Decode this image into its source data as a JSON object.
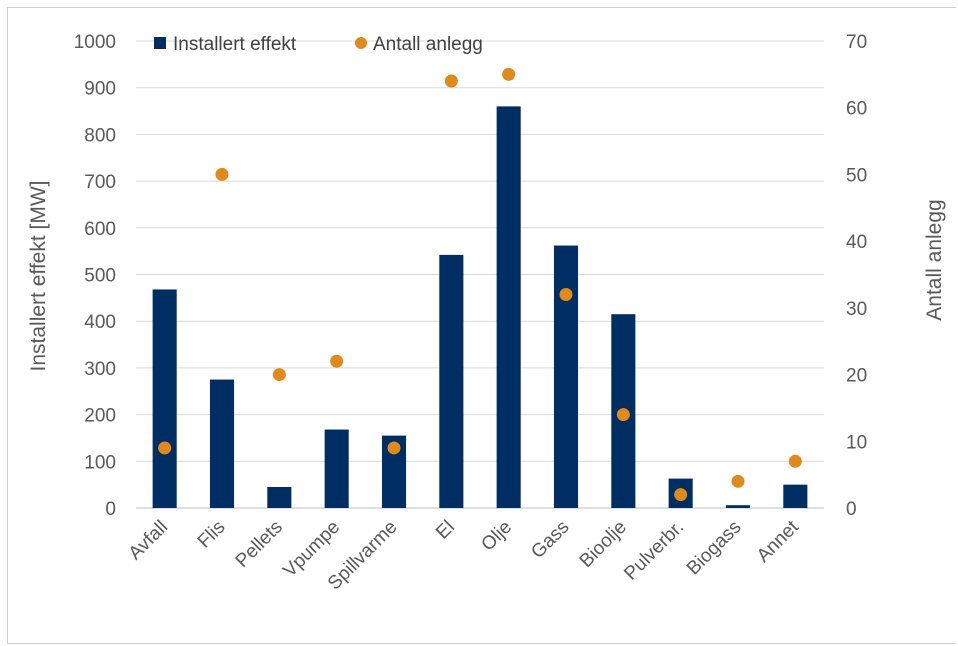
{
  "chart_data": {
    "type": "bar",
    "categories": [
      "Avfall",
      "Flis",
      "Pellets",
      "Vpumpe",
      "Spillvarme",
      "El",
      "Olje",
      "Gass",
      "Bioolje",
      "Pulverbr.",
      "Biogass",
      "Annet"
    ],
    "series": [
      {
        "name": "Installert effekt",
        "type": "bar",
        "axis": "left",
        "color": "#002d62",
        "values": [
          468,
          275,
          45,
          168,
          155,
          542,
          860,
          562,
          415,
          63,
          6,
          50
        ]
      },
      {
        "name": "Antall anlegg",
        "type": "scatter",
        "axis": "right",
        "color": "#e08a1e",
        "values": [
          9,
          50,
          20,
          22,
          9,
          64,
          65,
          32,
          14,
          2,
          4,
          7
        ]
      }
    ],
    "ylabel": "Installert effekt [MW]",
    "ylim": [
      0,
      1000
    ],
    "yticks": [
      "0",
      "100",
      "200",
      "300",
      "400",
      "500",
      "600",
      "700",
      "800",
      "900",
      "1000"
    ],
    "y2label": "Antall anlegg",
    "y2lim": [
      0,
      70
    ],
    "y2ticks": [
      "0",
      "10",
      "20",
      "30",
      "40",
      "50",
      "60",
      "70"
    ],
    "grid": true,
    "legend_position": "top"
  }
}
